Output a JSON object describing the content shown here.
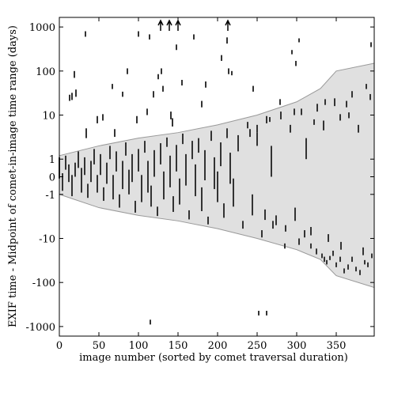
{
  "chart_data": {
    "type": "scatter",
    "xlabel": "image number (sorted by comet traversal duration)",
    "ylabel": "EXIF time - Midpoint of comet-in-image time range (days)",
    "xlim": [
      0,
      398
    ],
    "xticks": [
      0,
      50,
      100,
      150,
      200,
      250,
      300,
      350
    ],
    "ylim": [
      -1650,
      1650
    ],
    "yticks": [
      1000,
      100,
      10,
      1,
      0,
      -1,
      -10,
      -100,
      -1000
    ],
    "yscale": "symlog",
    "color": "#333333",
    "band_color": "#e0e0e0",
    "band": {
      "x": [
        0,
        50,
        100,
        150,
        200,
        250,
        300,
        330,
        350,
        398
      ],
      "upper": [
        1.2,
        2,
        3,
        4,
        6,
        10,
        20,
        40,
        100,
        150
      ],
      "lower": [
        -1,
        -2,
        -3,
        -4,
        -6,
        -10,
        -18,
        -30,
        -70,
        -130
      ]
    },
    "offscale_x": [
      128,
      139,
      150,
      213
    ],
    "x": [
      13,
      16,
      21,
      19,
      33,
      34,
      48,
      55,
      67,
      70,
      80,
      86,
      100,
      98,
      111,
      114,
      119,
      125,
      129,
      131,
      141,
      143,
      148,
      155,
      170,
      180,
      185,
      205,
      212,
      214,
      218,
      241,
      245,
      250,
      266,
      279,
      294,
      297,
      299,
      303,
      322,
      336,
      355,
      363,
      366,
      378,
      388,
      394,
      393,
      115,
      252,
      262,
      332,
      335,
      338,
      342,
      346,
      350,
      355,
      360,
      365,
      370,
      375,
      380,
      386,
      390,
      395,
      303,
      310,
      318,
      325,
      285,
      270,
      260,
      0,
      4,
      8,
      12,
      16,
      20,
      24,
      28,
      32,
      36,
      40,
      44,
      48,
      52,
      56,
      60,
      64,
      68,
      72,
      76,
      80,
      84,
      88,
      92,
      96,
      100,
      104,
      108,
      112,
      116,
      120,
      124,
      128,
      132,
      136,
      140,
      144,
      148,
      152,
      156,
      160,
      164,
      168,
      172,
      176,
      180,
      184,
      188,
      192,
      196,
      200,
      204,
      208,
      212,
      216,
      220,
      226,
      232,
      238,
      244,
      250,
      256,
      262,
      268,
      274,
      280,
      286,
      292,
      298,
      306,
      312,
      318,
      326,
      334,
      340,
      348,
      356,
      370,
      384
    ],
    "values": [
      25,
      27,
      32,
      85,
      700,
      4,
      8,
      9,
      45,
      4,
      30,
      100,
      700,
      8,
      12,
      600,
      30,
      75,
      100,
      40,
      10,
      7,
      350,
      55,
      600,
      18,
      50,
      200,
      500,
      100,
      90,
      4,
      40,
      5,
      8,
      20,
      270,
      12,
      150,
      500,
      7,
      20,
      9,
      18,
      10,
      5,
      45,
      400,
      26,
      -800,
      -500,
      -500,
      -25,
      -30,
      -35,
      -28,
      -22,
      -40,
      -30,
      -55,
      -45,
      -30,
      -50,
      -60,
      -35,
      -40,
      -25,
      -12,
      -8,
      -15,
      -20,
      -15,
      -5,
      -3,
      0.5,
      -0.3,
      0.8,
      0.2,
      -0.5,
      0.4,
      1,
      -0.2,
      0.6,
      -0.8,
      0.3,
      1.2,
      -0.4,
      0.7,
      -1,
      0.2,
      1.5,
      -0.6,
      0.9,
      -1.5,
      0.1,
      1.8,
      -0.3,
      0.5,
      -2,
      1,
      -0.7,
      2,
      0,
      -1.2,
      0.8,
      -2.5,
      1.5,
      -0.5,
      2.5,
      0.3,
      -1.8,
      1.2,
      -0.9,
      3,
      0.4,
      -3,
      1.8,
      -0.2,
      2.2,
      -1.5,
      0.7,
      -4,
      3.5,
      0.2,
      -0.6,
      1.5,
      -2.5,
      4,
      0.5,
      -1,
      2.5,
      -5,
      6,
      -2,
      3,
      -8,
      8,
      1,
      -4,
      10,
      -6,
      5,
      -3,
      12,
      2,
      -7,
      15,
      6,
      -10,
      20,
      -15,
      30,
      -20
    ],
    "errors": [
      4,
      5,
      6,
      15,
      100,
      1,
      1.5,
      1.5,
      6,
      0.8,
      4,
      15,
      100,
      1.5,
      2,
      80,
      5,
      10,
      15,
      6,
      2,
      1.5,
      50,
      8,
      80,
      3,
      8,
      30,
      80,
      15,
      10,
      0.8,
      6,
      1,
      1,
      3,
      30,
      2,
      20,
      50,
      1,
      3,
      1.5,
      3,
      1.5,
      1,
      6,
      50,
      4,
      100,
      60,
      60,
      3,
      4,
      4,
      3,
      3,
      5,
      4,
      7,
      6,
      4,
      6,
      8,
      4,
      5,
      3,
      2,
      1.5,
      2,
      3,
      2,
      1,
      0.8,
      0.6,
      0.5,
      0.4,
      0.5,
      0.6,
      0.4,
      0.5,
      0.7,
      0.5,
      0.4,
      0.6,
      0.5,
      0.5,
      0.6,
      0.4,
      0.6,
      0.5,
      0.7,
      0.6,
      0.5,
      0.8,
      0.6,
      0.7,
      0.8,
      0.6,
      0.7,
      0.8,
      0.6,
      0.9,
      0.7,
      0.8,
      0.6,
      0.8,
      0.8,
      0.6,
      0.9,
      0.7,
      0.9,
      0.8,
      0.8,
      0.9,
      0.7,
      0.8,
      0.9,
      0.8,
      0.9,
      0.9,
      0.8,
      0.9,
      0.9,
      0.9,
      0.9,
      0.9,
      1,
      0.9,
      0.9,
      1,
      1,
      1,
      1,
      1,
      1.5,
      1.5,
      1,
      1,
      2,
      1,
      1,
      1,
      2,
      1,
      1.5,
      3,
      1.5,
      2,
      4,
      3,
      5,
      4
    ]
  }
}
